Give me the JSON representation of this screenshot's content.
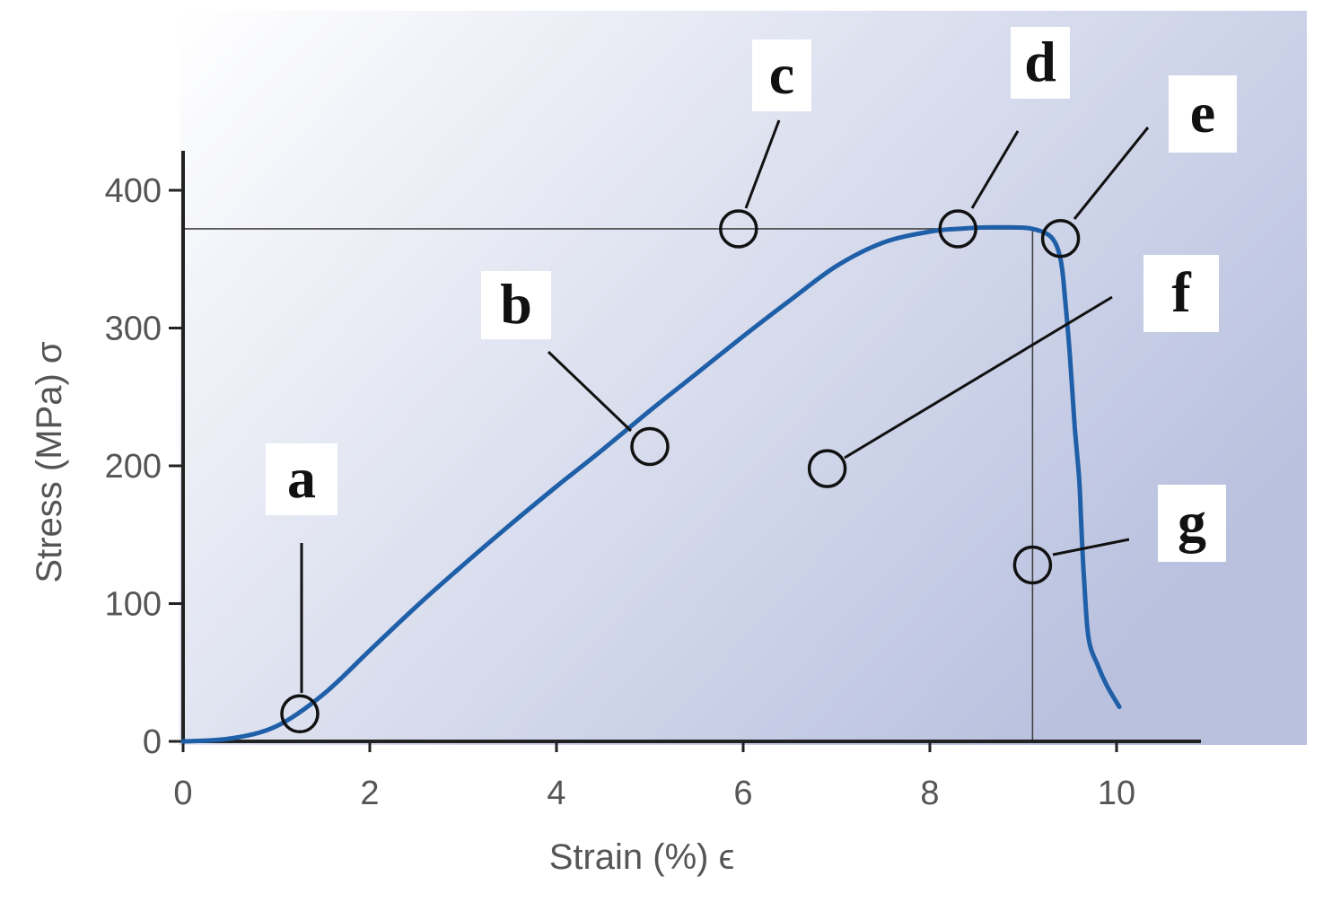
{
  "chart_data": {
    "type": "line",
    "title": "",
    "xlabel": "Strain (%) ϵ",
    "ylabel": "Stress (MPa) σ",
    "xlim": [
      0,
      10.9
    ],
    "ylim": [
      0,
      420
    ],
    "x_ticks": [
      "0",
      "2",
      "4",
      "6",
      "8",
      "10"
    ],
    "y_ticks": [
      "0",
      "100",
      "200",
      "300",
      "400"
    ],
    "grid": false,
    "legend": "none",
    "colors": {
      "curve": "#1f5fa8",
      "axes": "#222222",
      "plot_bg_light": "#ffffff",
      "plot_bg_dark": "#b9c1df"
    },
    "series": [
      {
        "x": [
          0,
          0.5,
          1.0,
          1.5,
          2.0,
          2.5,
          3.0,
          3.5,
          4.0,
          4.5,
          5.0,
          5.5,
          6.0,
          6.5,
          7.0,
          7.5,
          8.0,
          8.3,
          8.6,
          8.9,
          9.1,
          9.3,
          9.4,
          9.45,
          9.5,
          9.55,
          9.6,
          9.62,
          9.65,
          9.7,
          9.8,
          9.9,
          10.03
        ],
        "y": [
          0,
          2,
          11,
          34,
          66,
          98,
          128,
          157,
          185,
          212,
          240,
          267,
          294,
          320,
          345,
          362,
          370,
          372,
          373,
          373,
          372,
          366,
          350,
          320,
          280,
          230,
          190,
          160,
          120,
          75,
          55,
          40,
          25
        ]
      }
    ],
    "reference_lines": {
      "yield_stress": 372,
      "fracture_strain": 9.1
    },
    "annotations": [
      {
        "label": "a",
        "x": 1.25,
        "y": 20
      },
      {
        "label": "b",
        "x": 5.0,
        "y": 214
      },
      {
        "label": "c",
        "x": 5.95,
        "y": 372
      },
      {
        "label": "d",
        "x": 8.3,
        "y": 372
      },
      {
        "label": "e",
        "x": 9.4,
        "y": 365
      },
      {
        "label": "f",
        "x": 6.9,
        "y": 198
      },
      {
        "label": "g",
        "x": 9.1,
        "y": 128
      }
    ]
  }
}
